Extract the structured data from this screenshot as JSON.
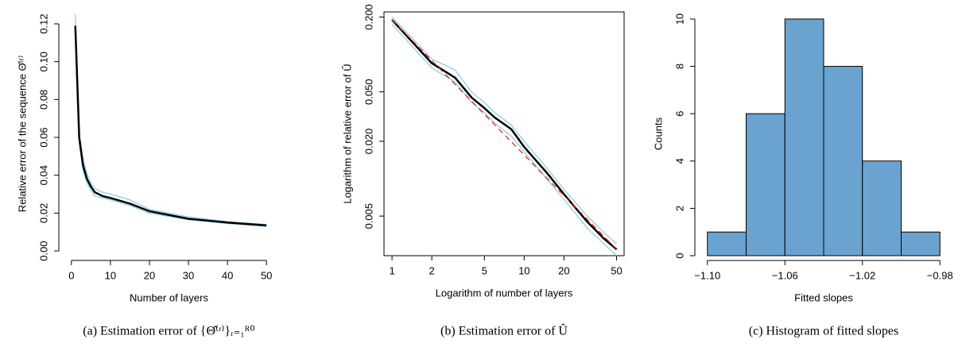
{
  "chart_data": [
    {
      "type": "line",
      "xlabel": "Number of layers",
      "ylabel": "Relative error of the sequence Θ̂⁽ʳ⁾",
      "caption": "(a) Estimation error of {Θ̂⁽ʳ⁾}ᵣ₌₁ᴿ⁰",
      "x": [
        1,
        2,
        3,
        4,
        5,
        6,
        8,
        10,
        15,
        20,
        30,
        40,
        50
      ],
      "series": [
        {
          "color": "#8ecfe8",
          "values": [
            0.125,
            0.062,
            0.048,
            0.041,
            0.036,
            0.033,
            0.031,
            0.03,
            0.027,
            0.022,
            0.018,
            0.0155,
            0.014
          ]
        },
        {
          "color": "#8ecfe8",
          "values": [
            0.115,
            0.057,
            0.042,
            0.036,
            0.032,
            0.029,
            0.028,
            0.027,
            0.024,
            0.02,
            0.0165,
            0.0145,
            0.013
          ]
        },
        {
          "color": "#000000",
          "values": [
            0.119,
            0.06,
            0.045,
            0.038,
            0.034,
            0.031,
            0.029,
            0.028,
            0.025,
            0.021,
            0.017,
            0.015,
            0.0135
          ]
        }
      ],
      "xlim": [
        -2,
        52
      ],
      "xticks": [
        0,
        10,
        20,
        30,
        40,
        50
      ],
      "ylim": [
        -0.0025,
        0.1263
      ],
      "yticks": [
        {
          "value": 0,
          "label": "0.00"
        },
        0.02,
        0.04,
        0.06,
        0.08,
        {
          "value": 0.1,
          "label": "0.10"
        },
        0.12
      ],
      "box": false
    },
    {
      "type": "line",
      "xlabel": "Logarithm of number of layers",
      "ylabel": "Logarithm of relative error of Û",
      "caption": "(b) Estimation error of Û",
      "x": [
        1,
        2,
        3,
        4,
        5,
        6,
        8,
        10,
        15,
        20,
        30,
        40,
        50
      ],
      "series": [
        {
          "color": "#8ecfe8",
          "values": [
            0.2,
            0.092,
            0.075,
            0.05,
            0.041,
            0.034,
            0.027,
            0.02,
            0.012,
            0.0082,
            0.005,
            0.0037,
            0.003
          ]
        },
        {
          "color": "#8ecfe8",
          "values": [
            0.175,
            0.078,
            0.06,
            0.041,
            0.034,
            0.028,
            0.022,
            0.0165,
            0.0098,
            0.0068,
            0.004,
            0.003,
            0.0024
          ]
        },
        {
          "color": "#000000",
          "values": [
            0.19,
            0.085,
            0.065,
            0.045,
            0.037,
            0.031,
            0.025,
            0.018,
            0.011,
            0.0075,
            0.0045,
            0.0033,
            0.0027
          ]
        },
        {
          "color": "#e8231e",
          "dashed": true,
          "x": [
            1,
            50
          ],
          "values": [
            0.19,
            0.0027
          ]
        }
      ],
      "log_x": true,
      "log_y": true,
      "xlim": [
        0.87,
        57
      ],
      "xticks": [
        1,
        2,
        5,
        10,
        20,
        50
      ],
      "ylim": [
        0.0024,
        0.22
      ],
      "yticks": [
        0.005,
        {
          "value": 0.02,
          "label": "0.020"
        },
        {
          "value": 0.05,
          "label": "0.050"
        },
        {
          "value": 0.2,
          "label": "0.200"
        }
      ],
      "box": true
    },
    {
      "type": "histogram",
      "xlabel": "Fitted slopes",
      "ylabel": "Counts",
      "caption": "(c) Histogram of fitted slopes",
      "bins": [
        -1.1,
        -1.08,
        -1.06,
        -1.04,
        -1.02,
        -1.0,
        -0.98
      ],
      "values": [
        1,
        6,
        10,
        8,
        4,
        1
      ],
      "color": "#6aa3cf",
      "xlim": [
        -1.104,
        -0.976
      ],
      "xticks": [
        {
          "value": -1.1,
          "label": "−1.10"
        },
        {
          "value": -1.06,
          "label": "−1.06"
        },
        {
          "value": -1.02,
          "label": "−1.02"
        },
        {
          "value": -0.98,
          "label": "−0.98"
        }
      ],
      "ylim": [
        0,
        10.3
      ],
      "yticks": [
        0,
        2,
        4,
        6,
        8,
        10
      ],
      "box": false
    }
  ]
}
